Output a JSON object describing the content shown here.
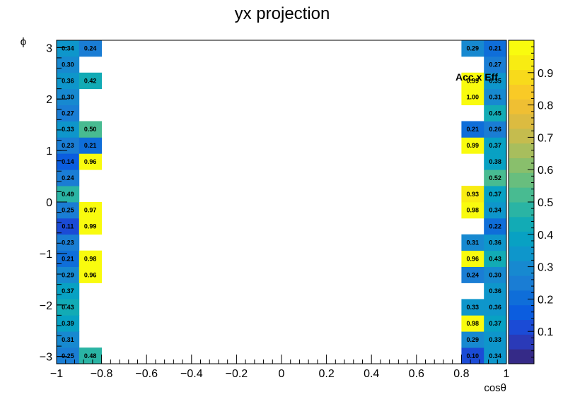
{
  "chart_data": {
    "type": "heatmap",
    "title": "yx projection",
    "xlabel": "cosθ",
    "ylabel": "ϕ",
    "legend_label": "Acc x Eff",
    "xlim": [
      -1,
      1
    ],
    "ylim": [
      -3.1416,
      3.1416
    ],
    "zlim": [
      0,
      1
    ],
    "x_bins": 20,
    "y_bins": 20,
    "x_ticks": [
      -1,
      -0.8,
      -0.6,
      -0.4,
      -0.2,
      0,
      0.2,
      0.4,
      0.6,
      0.8,
      1
    ],
    "x_tick_labels": [
      "−1",
      "−0.8",
      "−0.6",
      "−0.4",
      "−0.2",
      "0",
      "0.2",
      "0.4",
      "0.6",
      "0.8",
      "1"
    ],
    "y_ticks": [
      -3,
      -2,
      -1,
      0,
      1,
      2,
      3
    ],
    "y_tick_labels": [
      "−3",
      "−2",
      "−1",
      "0",
      "1",
      "2",
      "3"
    ],
    "z_ticks": [
      0.1,
      0.2,
      0.3,
      0.4,
      0.5,
      0.6,
      0.7,
      0.8,
      0.9
    ],
    "z_tick_labels": [
      "0.1",
      "0.2",
      "0.3",
      "0.4",
      "0.5",
      "0.6",
      "0.7",
      "0.8",
      "0.9"
    ],
    "cells": [
      {
        "xbin": 0,
        "ybin": 0,
        "value": 0.25,
        "label": "0.25"
      },
      {
        "xbin": 0,
        "ybin": 1,
        "value": 0.31,
        "label": "0.31"
      },
      {
        "xbin": 0,
        "ybin": 2,
        "value": 0.39,
        "label": "0.39"
      },
      {
        "xbin": 0,
        "ybin": 3,
        "value": 0.43,
        "label": "0.43"
      },
      {
        "xbin": 0,
        "ybin": 4,
        "value": 0.37,
        "label": "0.37"
      },
      {
        "xbin": 0,
        "ybin": 5,
        "value": 0.29,
        "label": "0.29"
      },
      {
        "xbin": 0,
        "ybin": 6,
        "value": 0.21,
        "label": "0.21"
      },
      {
        "xbin": 0,
        "ybin": 7,
        "value": 0.23,
        "label": "0.23"
      },
      {
        "xbin": 0,
        "ybin": 8,
        "value": 0.11,
        "label": "0.11"
      },
      {
        "xbin": 0,
        "ybin": 9,
        "value": 0.25,
        "label": "0.25"
      },
      {
        "xbin": 0,
        "ybin": 10,
        "value": 0.49,
        "label": "0.49"
      },
      {
        "xbin": 0,
        "ybin": 11,
        "value": 0.24,
        "label": "0.24"
      },
      {
        "xbin": 0,
        "ybin": 12,
        "value": 0.14,
        "label": "0.14"
      },
      {
        "xbin": 0,
        "ybin": 13,
        "value": 0.23,
        "label": "0.23"
      },
      {
        "xbin": 0,
        "ybin": 14,
        "value": 0.33,
        "label": "0.33"
      },
      {
        "xbin": 0,
        "ybin": 15,
        "value": 0.27,
        "label": "0.27"
      },
      {
        "xbin": 0,
        "ybin": 16,
        "value": 0.3,
        "label": "0.30"
      },
      {
        "xbin": 0,
        "ybin": 17,
        "value": 0.36,
        "label": "0.36"
      },
      {
        "xbin": 0,
        "ybin": 18,
        "value": 0.3,
        "label": "0.30"
      },
      {
        "xbin": 0,
        "ybin": 19,
        "value": 0.34,
        "label": "0.34"
      },
      {
        "xbin": 1,
        "ybin": 0,
        "value": 0.48,
        "label": "0.48"
      },
      {
        "xbin": 1,
        "ybin": 5,
        "value": 0.96,
        "label": "0.96"
      },
      {
        "xbin": 1,
        "ybin": 6,
        "value": 0.98,
        "label": "0.98"
      },
      {
        "xbin": 1,
        "ybin": 8,
        "value": 0.99,
        "label": "0.99"
      },
      {
        "xbin": 1,
        "ybin": 9,
        "value": 0.97,
        "label": "0.97"
      },
      {
        "xbin": 1,
        "ybin": 12,
        "value": 0.96,
        "label": "0.96"
      },
      {
        "xbin": 1,
        "ybin": 13,
        "value": 0.21,
        "label": "0.21"
      },
      {
        "xbin": 1,
        "ybin": 14,
        "value": 0.5,
        "label": "0.50"
      },
      {
        "xbin": 1,
        "ybin": 17,
        "value": 0.42,
        "label": "0.42"
      },
      {
        "xbin": 1,
        "ybin": 19,
        "value": 0.24,
        "label": "0.24"
      },
      {
        "xbin": 18,
        "ybin": 0,
        "value": 0.1,
        "label": "0.10"
      },
      {
        "xbin": 18,
        "ybin": 1,
        "value": 0.29,
        "label": "0.29"
      },
      {
        "xbin": 18,
        "ybin": 2,
        "value": 0.98,
        "label": "0.98"
      },
      {
        "xbin": 18,
        "ybin": 3,
        "value": 0.33,
        "label": "0.33"
      },
      {
        "xbin": 18,
        "ybin": 5,
        "value": 0.24,
        "label": "0.24"
      },
      {
        "xbin": 18,
        "ybin": 6,
        "value": 0.96,
        "label": "0.96"
      },
      {
        "xbin": 18,
        "ybin": 7,
        "value": 0.31,
        "label": "0.31"
      },
      {
        "xbin": 18,
        "ybin": 9,
        "value": 0.98,
        "label": "0.98"
      },
      {
        "xbin": 18,
        "ybin": 10,
        "value": 0.93,
        "label": "0.93"
      },
      {
        "xbin": 18,
        "ybin": 13,
        "value": 0.99,
        "label": "0.99"
      },
      {
        "xbin": 18,
        "ybin": 14,
        "value": 0.21,
        "label": "0.21"
      },
      {
        "xbin": 18,
        "ybin": 16,
        "value": 1.0,
        "label": "1.00"
      },
      {
        "xbin": 18,
        "ybin": 17,
        "value": 0.99,
        "label": "0.99"
      },
      {
        "xbin": 18,
        "ybin": 19,
        "value": 0.29,
        "label": "0.29"
      },
      {
        "xbin": 19,
        "ybin": 0,
        "value": 0.34,
        "label": "0.34"
      },
      {
        "xbin": 19,
        "ybin": 1,
        "value": 0.33,
        "label": "0.33"
      },
      {
        "xbin": 19,
        "ybin": 2,
        "value": 0.37,
        "label": "0.37"
      },
      {
        "xbin": 19,
        "ybin": 3,
        "value": 0.36,
        "label": "0.36"
      },
      {
        "xbin": 19,
        "ybin": 4,
        "value": 0.36,
        "label": "0.36"
      },
      {
        "xbin": 19,
        "ybin": 5,
        "value": 0.3,
        "label": "0.30"
      },
      {
        "xbin": 19,
        "ybin": 6,
        "value": 0.43,
        "label": "0.43"
      },
      {
        "xbin": 19,
        "ybin": 7,
        "value": 0.36,
        "label": "0.36"
      },
      {
        "xbin": 19,
        "ybin": 8,
        "value": 0.22,
        "label": "0.22"
      },
      {
        "xbin": 19,
        "ybin": 9,
        "value": 0.34,
        "label": "0.34"
      },
      {
        "xbin": 19,
        "ybin": 10,
        "value": 0.37,
        "label": "0.37"
      },
      {
        "xbin": 19,
        "ybin": 11,
        "value": 0.52,
        "label": "0.52"
      },
      {
        "xbin": 19,
        "ybin": 12,
        "value": 0.38,
        "label": "0.38"
      },
      {
        "xbin": 19,
        "ybin": 13,
        "value": 0.37,
        "label": "0.37"
      },
      {
        "xbin": 19,
        "ybin": 14,
        "value": 0.26,
        "label": "0.26"
      },
      {
        "xbin": 19,
        "ybin": 15,
        "value": 0.45,
        "label": "0.45"
      },
      {
        "xbin": 19,
        "ybin": 16,
        "value": 0.31,
        "label": "0.31"
      },
      {
        "xbin": 19,
        "ybin": 17,
        "value": 0.35,
        "label": "0.35"
      },
      {
        "xbin": 19,
        "ybin": 18,
        "value": 0.27,
        "label": "0.27"
      },
      {
        "xbin": 19,
        "ybin": 19,
        "value": 0.21,
        "label": "0.21"
      }
    ],
    "palette": [
      "#352a87",
      "#2a3ab8",
      "#1b4bd6",
      "#0b5ddf",
      "#0f6ed9",
      "#1a7dd4",
      "#1789d0",
      "#0e96cb",
      "#08a1c3",
      "#12abb5",
      "#2ab4a4",
      "#48bb91",
      "#68be7e",
      "#89bf6c",
      "#a8be5d",
      "#c5bc4e",
      "#dcbb40",
      "#efbf33",
      "#f9ca26",
      "#f8da1b",
      "#f8ec12",
      "#f9fb0e"
    ],
    "grid": false,
    "legend_position": "top-right"
  }
}
